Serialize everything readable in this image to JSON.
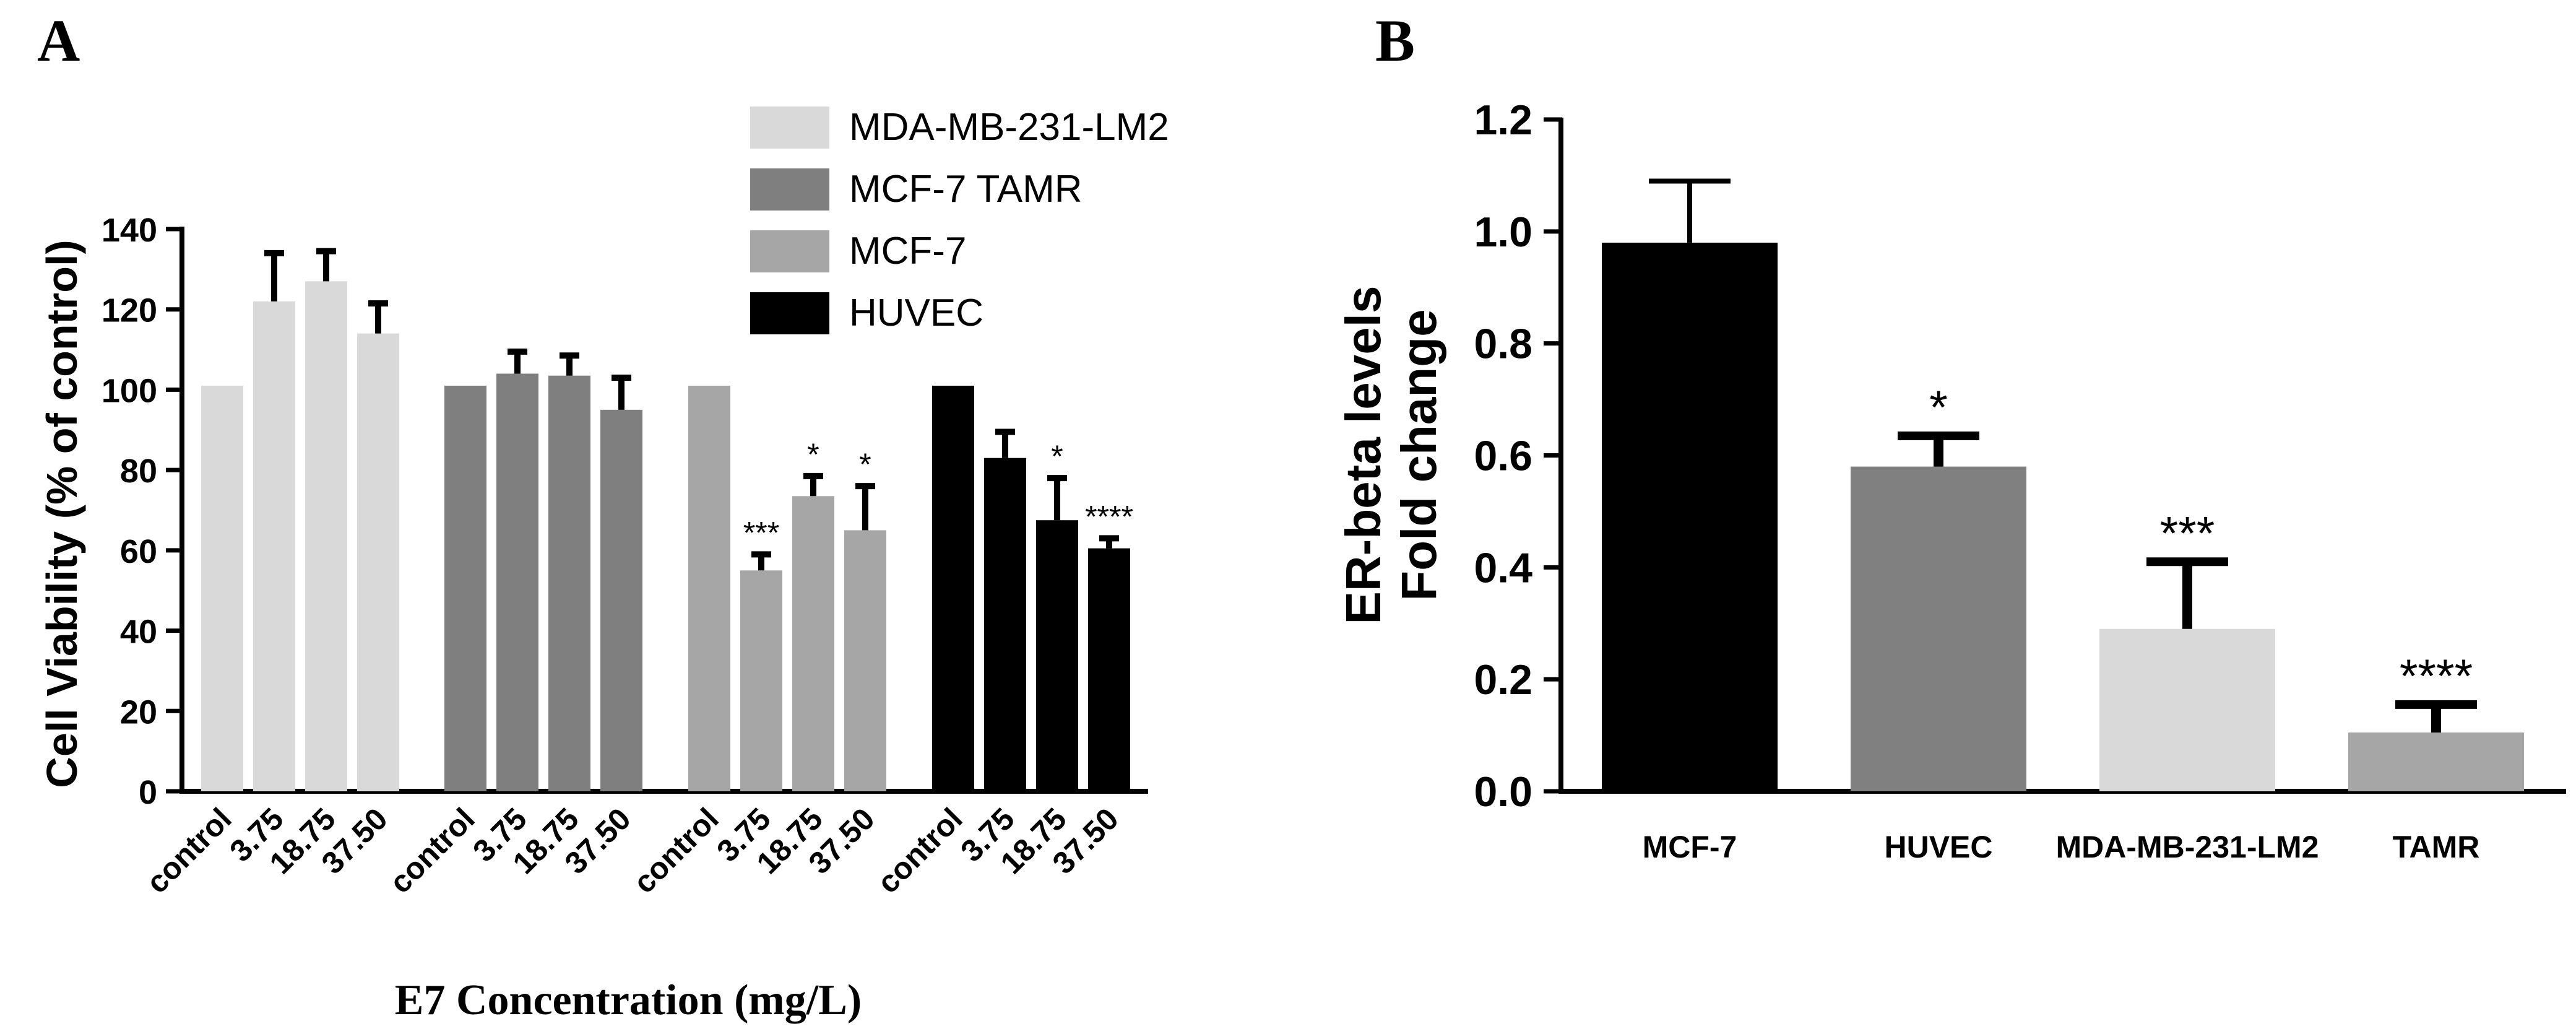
{
  "chart_data": [
    {
      "panel": "A",
      "type": "bar",
      "ylabel": "Cell Viability (% of control)",
      "xlabel": "E7 Concentration (mg/L)",
      "ylim": [
        0,
        140
      ],
      "yticks": [
        0,
        20,
        40,
        60,
        80,
        100,
        120,
        140
      ],
      "ytick_labels": [
        "0",
        "20",
        "40",
        "60",
        "80",
        "100",
        "120",
        "140"
      ],
      "categories": [
        "control",
        "3.75",
        "18.75",
        "37.50"
      ],
      "legend_position": "top-right",
      "series": [
        {
          "name": "MDA-MB-231-LM2",
          "color": "#d9d9d9",
          "values": [
            101,
            122,
            127,
            114
          ],
          "errors": [
            0,
            12,
            7.5,
            7.5
          ],
          "sig": [
            "",
            "",
            "",
            ""
          ]
        },
        {
          "name": "MCF-7 TAMR",
          "color": "#7f7f7f",
          "values": [
            101,
            104,
            103.5,
            95
          ],
          "errors": [
            0,
            5.5,
            5,
            8
          ],
          "sig": [
            "",
            "",
            "",
            ""
          ]
        },
        {
          "name": "MCF-7",
          "color": "#a6a6a6",
          "values": [
            101,
            55,
            73.5,
            65
          ],
          "errors": [
            0,
            4,
            5,
            11
          ],
          "sig": [
            "",
            "***",
            "*",
            "*"
          ]
        },
        {
          "name": "HUVEC",
          "color": "#000000",
          "values": [
            101,
            83,
            67.5,
            60.5
          ],
          "errors": [
            0,
            6.5,
            10.5,
            2.5
          ],
          "sig": [
            "",
            "",
            "*",
            "****"
          ]
        }
      ]
    },
    {
      "panel": "B",
      "type": "bar",
      "ylabel_line1": "ER-beta levels",
      "ylabel_line2": "Fold change",
      "ylim": [
        0,
        1.2
      ],
      "yticks": [
        0,
        0.2,
        0.4,
        0.6,
        0.8,
        1.0,
        1.2
      ],
      "ytick_labels": [
        "0.0",
        "0.2",
        "0.4",
        "0.6",
        "0.8",
        "1.0",
        "1.2"
      ],
      "categories": [
        "MCF-7",
        "HUVEC",
        "MDA-MB-231-LM2",
        "TAMR"
      ],
      "values": [
        0.98,
        0.58,
        0.29,
        0.105
      ],
      "errors": [
        0.11,
        0.055,
        0.12,
        0.05
      ],
      "colors": [
        "#000000",
        "#808080",
        "#d9d9d9",
        "#a6a6a6"
      ],
      "sig": [
        "",
        "*",
        "***",
        "****"
      ]
    }
  ]
}
